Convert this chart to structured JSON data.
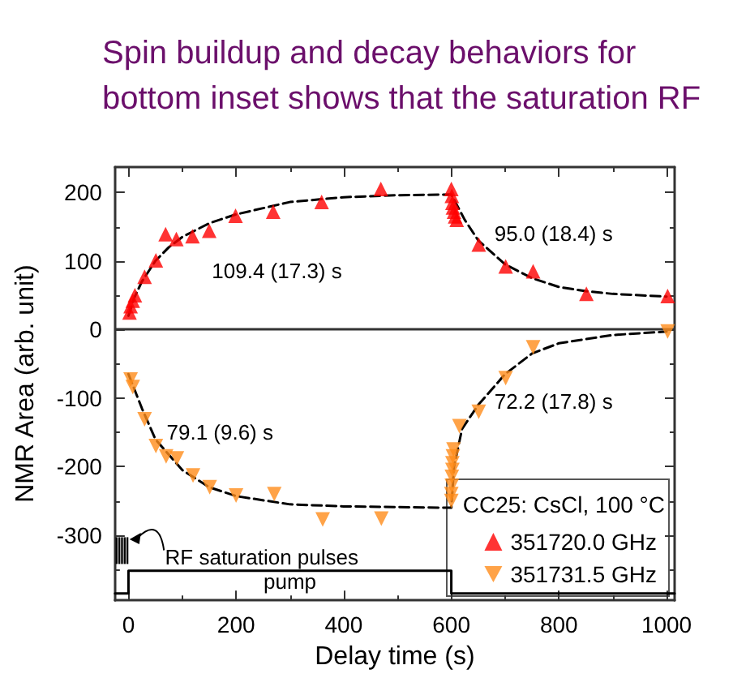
{
  "chart_data": {
    "type": "scatter",
    "title": "Spin buildup and decay behaviors for",
    "subtitle": "bottom inset shows that the saturation RF",
    "xlabel": "Delay time (s)",
    "ylabel": "NMR Area (arb. unit)",
    "legend_title": "CC25: CsCl, 100 °C",
    "legend": "bottom right",
    "grid": false,
    "xlim": [
      -25,
      1015
    ],
    "xticks": [
      0,
      200,
      400,
      600,
      800,
      1000
    ],
    "ylim": [
      -395,
      237
    ],
    "yticks": [
      -300,
      -200,
      -100,
      0,
      100,
      200
    ],
    "ref_lines": [
      {
        "axis": "y",
        "value": 0,
        "color": "#333333"
      }
    ],
    "annotations": [
      "109.4 (17.3) s",
      "95.0 (18.4) s",
      "79.1 (9.6) s",
      "72.2 (17.8) s",
      "RF saturation pulses",
      "pump"
    ],
    "series": [
      {
        "name": "351720.0 GHz",
        "marker": "triangle",
        "color": "#ff0000",
        "x": [
          2,
          4,
          8,
          12,
          30,
          51,
          69,
          89,
          119,
          150,
          199,
          269,
          359,
          469,
          600,
          601,
          602,
          603,
          605,
          607,
          610,
          651,
          701,
          752,
          851,
          1002
        ],
        "values": [
          25,
          34,
          42,
          50,
          77,
          101,
          139,
          132,
          136,
          144,
          166,
          172,
          186,
          205,
          205,
          195,
          185,
          178,
          172,
          165,
          160,
          124,
          92,
          85,
          52,
          49
        ]
      },
      {
        "name": "351731.5 GHz",
        "marker": "triangle-down",
        "color": "#ff8c1a",
        "x": [
          4,
          8,
          30,
          51,
          70,
          90,
          120,
          151,
          200,
          271,
          361,
          470,
          600,
          600,
          601,
          601,
          602,
          602,
          603,
          604,
          615,
          651,
          701,
          752,
          1002
        ],
        "values": [
          -73,
          -84,
          -131,
          -170,
          -185,
          -188,
          -213,
          -230,
          -242,
          -240,
          -277,
          -276,
          -250,
          -240,
          -228,
          -215,
          -205,
          -195,
          -185,
          -175,
          -141,
          -120,
          -71,
          -26,
          -3
        ]
      },
      {
        "type": "line",
        "marker": "none",
        "line_style": "dashed",
        "color": "#000000",
        "x": [
          0,
          10,
          25,
          50,
          75,
          100,
          150,
          200,
          300,
          400,
          500,
          600,
          625,
          650,
          700,
          750,
          800,
          850,
          900,
          1000
        ],
        "values": [
          20,
          45,
          70,
          100,
          120,
          135,
          155,
          168,
          186,
          193,
          196,
          197,
          160,
          130,
          95,
          75,
          62,
          56,
          52,
          48
        ]
      },
      {
        "type": "line",
        "marker": "none",
        "line_style": "dashed",
        "color": "#000000",
        "x": [
          0,
          25,
          50,
          100,
          150,
          200,
          300,
          400,
          600,
          605,
          620,
          650,
          700,
          750,
          800,
          900,
          1000
        ],
        "values": [
          -65,
          -115,
          -160,
          -205,
          -230,
          -243,
          -255,
          -258,
          -260,
          -200,
          -145,
          -110,
          -65,
          -35,
          -20,
          -8,
          -3
        ]
      },
      {
        "type": "line",
        "marker": "none",
        "line_style": "solid",
        "color": "#000000",
        "x": [
          -25,
          0,
          0,
          600,
          600,
          1015
        ],
        "values": [
          -385,
          -385,
          -352,
          -352,
          -385,
          -385
        ]
      }
    ]
  }
}
